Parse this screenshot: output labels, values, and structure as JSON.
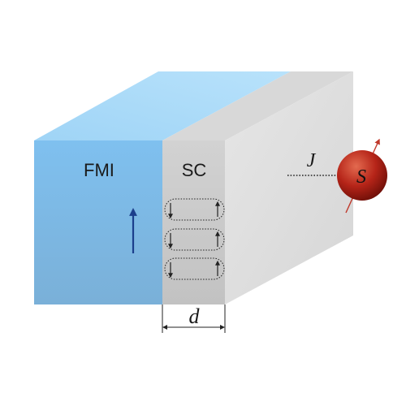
{
  "labels": {
    "fmi": "FMI",
    "sc": "SC",
    "coupling": "J",
    "spin": "S",
    "thickness": "d"
  },
  "colors": {
    "fmi_front_top": "#7fc0ef",
    "fmi_front_bottom": "#7ab0d8",
    "fmi_top_light": "#b8e2fb",
    "fmi_top_dark": "#9fd4f6",
    "sc_front": "#cbcbcb",
    "sc_top": "#d8d8d8",
    "side_face": "#e2e2e2",
    "magnetization_arrow": "#1c3f8c",
    "spin_sphere": "#b52418",
    "spin_arrow": "#c0392b",
    "vortex_line": "#222222"
  },
  "vortices": {
    "count": 3
  }
}
